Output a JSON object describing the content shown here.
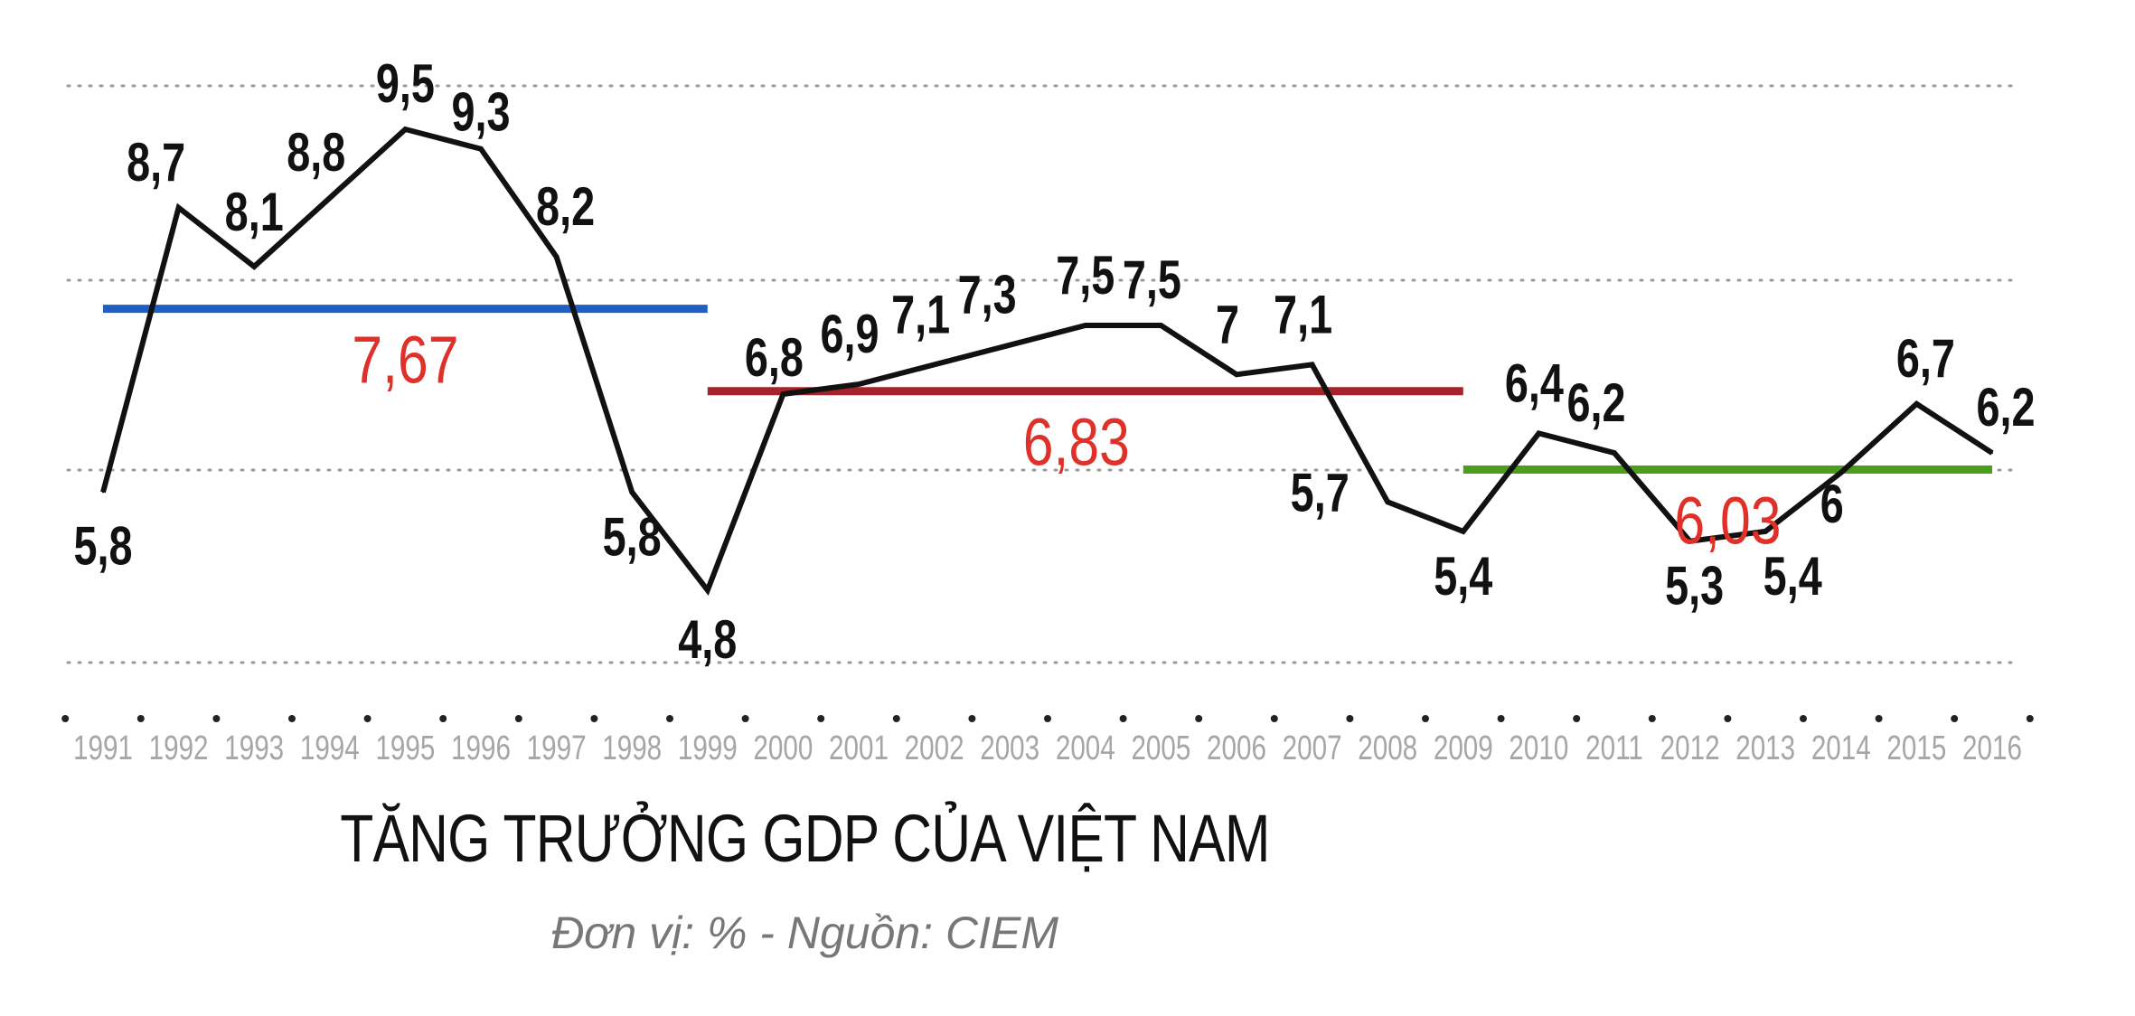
{
  "chart_data": {
    "type": "line",
    "title": "TĂNG TRƯỞNG GDP CỦA VIỆT NAM",
    "subtitle": "Đơn vị:  % - Nguồn: CIEM",
    "categories": [
      "1991",
      "1992",
      "1993",
      "1994",
      "1995",
      "1996",
      "1997",
      "1998",
      "1999",
      "2000",
      "2001",
      "2002",
      "2003",
      "2004",
      "2005",
      "2006",
      "2007",
      "2008",
      "2009",
      "2010",
      "2011",
      "2012",
      "2013",
      "2014",
      "2015",
      "2016"
    ],
    "series": [
      {
        "values": [
          5.8,
          8.7,
          8.1,
          8.8,
          9.5,
          9.3,
          8.2,
          5.8,
          4.8,
          6.8,
          6.9,
          7.1,
          7.3,
          7.5,
          7.5,
          7,
          7.1,
          5.7,
          5.4,
          6.4,
          6.2,
          5.3,
          5.4,
          6,
          6.7,
          6.2
        ],
        "labels": [
          "5,8",
          "8,7",
          "8,1",
          "8,8",
          "9,5",
          "9,3",
          "8,2",
          "5,8",
          "4,8",
          "6,8",
          "6,9",
          "7,1",
          "7,3",
          "7,5",
          "7,5",
          "7",
          "7,1",
          "5,7",
          "5,4",
          "6,4",
          "6,2",
          "5,3",
          "5,4",
          "6",
          "6,7",
          "6,2"
        ],
        "color": "#111111"
      }
    ],
    "averages": [
      {
        "label": "7,67",
        "value": 7.67,
        "from": "1991",
        "to": "1999",
        "color": "#1f5fc4",
        "label_color": "#e0302a"
      },
      {
        "label": "6,83",
        "value": 6.83,
        "from": "1999",
        "to": "2009",
        "color": "#a5242c",
        "label_color": "#e0302a"
      },
      {
        "label": "6,03",
        "value": 6.03,
        "from": "2009",
        "to": "2016",
        "color": "#4d9e1c",
        "label_color": "#e0302a"
      }
    ],
    "ylim": [
      4.2,
      9.9
    ],
    "grid": true,
    "xlabel": "",
    "ylabel": ""
  }
}
